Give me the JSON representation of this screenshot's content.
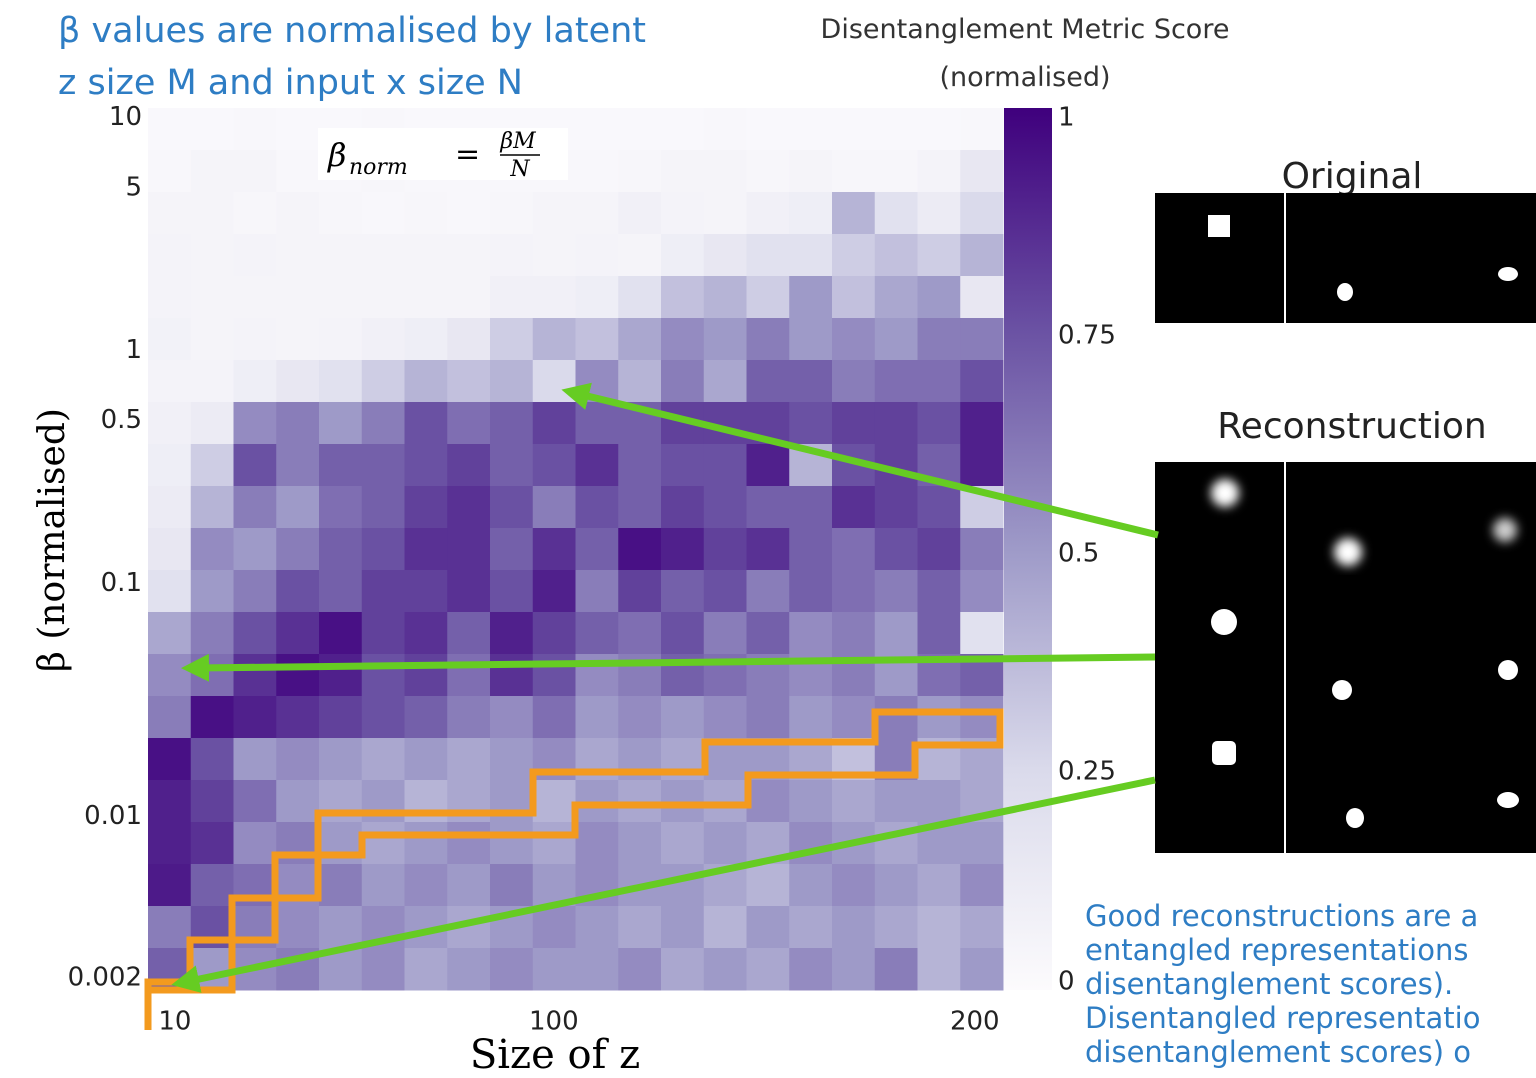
{
  "chart_data": {
    "type": "heatmap",
    "annotation_title": [
      "β values are normalised by latent",
      "z size M and input x size N"
    ],
    "formula": {
      "lhs": "β",
      "sub": "norm",
      "eq": "=",
      "num": "βM",
      "den": "N"
    },
    "colorbar_title": [
      "Disentanglement Metric Score",
      "(normalised)"
    ],
    "xlabel": "Size of z",
    "ylabel": "β (normalised)",
    "xlim": [
      3.6,
      206.7
    ],
    "xticks": [
      10,
      100,
      200
    ],
    "ylog": true,
    "ylim": [
      0.0018,
      11
    ],
    "yticks": [
      10,
      5,
      1,
      0.5,
      0.1,
      0.01,
      0.002
    ],
    "clim": [
      0,
      1
    ],
    "cticks": [
      1,
      0.75,
      0.5,
      0.25,
      0
    ],
    "colorscale": [
      "#fcfbfd",
      "#dadaeb",
      "#9e9ac8",
      "#6a51a3",
      "#3f007d"
    ],
    "z": [
      [
        0.02,
        0.02,
        0.03,
        0.02,
        0.02,
        0.03,
        0.02,
        0.02,
        0.02,
        0.02,
        0.02,
        0.02,
        0.02,
        0.03,
        0.02,
        0.02,
        0.02,
        0.02,
        0.02,
        0.03
      ],
      [
        0.03,
        0.05,
        0.05,
        0.03,
        0.03,
        0.04,
        0.03,
        0.03,
        0.03,
        0.03,
        0.03,
        0.04,
        0.05,
        0.05,
        0.04,
        0.05,
        0.04,
        0.04,
        0.06,
        0.15
      ],
      [
        0.05,
        0.05,
        0.04,
        0.05,
        0.04,
        0.03,
        0.04,
        0.03,
        0.04,
        0.05,
        0.05,
        0.08,
        0.06,
        0.05,
        0.08,
        0.1,
        0.4,
        0.2,
        0.12,
        0.25
      ],
      [
        0.06,
        0.05,
        0.06,
        0.05,
        0.05,
        0.05,
        0.05,
        0.05,
        0.06,
        0.05,
        0.06,
        0.05,
        0.1,
        0.15,
        0.2,
        0.2,
        0.3,
        0.35,
        0.3,
        0.4
      ],
      [
        0.06,
        0.05,
        0.05,
        0.05,
        0.05,
        0.05,
        0.05,
        0.05,
        0.08,
        0.08,
        0.1,
        0.2,
        0.35,
        0.4,
        0.3,
        0.5,
        0.35,
        0.45,
        0.5,
        0.15
      ],
      [
        0.07,
        0.05,
        0.06,
        0.05,
        0.06,
        0.08,
        0.1,
        0.15,
        0.3,
        0.4,
        0.35,
        0.45,
        0.55,
        0.5,
        0.6,
        0.5,
        0.55,
        0.5,
        0.6,
        0.6
      ],
      [
        0.06,
        0.06,
        0.1,
        0.15,
        0.2,
        0.3,
        0.4,
        0.35,
        0.4,
        0.25,
        0.55,
        0.4,
        0.6,
        0.45,
        0.7,
        0.7,
        0.6,
        0.65,
        0.65,
        0.75
      ],
      [
        0.08,
        0.12,
        0.55,
        0.6,
        0.5,
        0.6,
        0.75,
        0.65,
        0.7,
        0.8,
        0.7,
        0.7,
        0.8,
        0.8,
        0.8,
        0.75,
        0.8,
        0.8,
        0.75,
        0.9
      ],
      [
        0.1,
        0.3,
        0.75,
        0.6,
        0.7,
        0.7,
        0.75,
        0.8,
        0.7,
        0.75,
        0.85,
        0.7,
        0.75,
        0.75,
        0.9,
        0.4,
        0.75,
        0.8,
        0.7,
        0.9
      ],
      [
        0.12,
        0.4,
        0.6,
        0.5,
        0.65,
        0.7,
        0.8,
        0.85,
        0.75,
        0.6,
        0.75,
        0.7,
        0.8,
        0.75,
        0.7,
        0.7,
        0.85,
        0.8,
        0.75,
        0.3
      ],
      [
        0.15,
        0.55,
        0.5,
        0.6,
        0.7,
        0.75,
        0.85,
        0.85,
        0.7,
        0.85,
        0.7,
        0.95,
        0.9,
        0.8,
        0.85,
        0.7,
        0.65,
        0.75,
        0.8,
        0.6
      ],
      [
        0.2,
        0.5,
        0.6,
        0.75,
        0.7,
        0.8,
        0.8,
        0.85,
        0.75,
        0.9,
        0.6,
        0.8,
        0.7,
        0.75,
        0.6,
        0.7,
        0.65,
        0.6,
        0.7,
        0.55
      ],
      [
        0.45,
        0.6,
        0.75,
        0.85,
        0.95,
        0.8,
        0.85,
        0.7,
        0.9,
        0.8,
        0.7,
        0.65,
        0.75,
        0.6,
        0.7,
        0.55,
        0.6,
        0.5,
        0.7,
        0.2
      ],
      [
        0.55,
        0.65,
        0.85,
        0.95,
        0.9,
        0.75,
        0.8,
        0.65,
        0.85,
        0.75,
        0.55,
        0.6,
        0.7,
        0.65,
        0.6,
        0.55,
        0.6,
        0.5,
        0.65,
        0.7
      ],
      [
        0.6,
        0.95,
        0.9,
        0.85,
        0.8,
        0.75,
        0.7,
        0.6,
        0.55,
        0.65,
        0.5,
        0.55,
        0.5,
        0.55,
        0.6,
        0.5,
        0.55,
        0.6,
        0.5,
        0.55
      ],
      [
        0.95,
        0.75,
        0.5,
        0.55,
        0.5,
        0.45,
        0.5,
        0.45,
        0.5,
        0.55,
        0.45,
        0.5,
        0.45,
        0.5,
        0.5,
        0.45,
        0.35,
        0.6,
        0.4,
        0.45
      ],
      [
        0.9,
        0.8,
        0.65,
        0.5,
        0.45,
        0.5,
        0.4,
        0.45,
        0.5,
        0.4,
        0.5,
        0.45,
        0.5,
        0.45,
        0.55,
        0.5,
        0.45,
        0.5,
        0.5,
        0.45
      ],
      [
        0.9,
        0.85,
        0.55,
        0.6,
        0.5,
        0.45,
        0.5,
        0.55,
        0.5,
        0.45,
        0.55,
        0.5,
        0.45,
        0.5,
        0.45,
        0.55,
        0.5,
        0.45,
        0.5,
        0.5
      ],
      [
        0.92,
        0.7,
        0.65,
        0.55,
        0.6,
        0.5,
        0.55,
        0.5,
        0.6,
        0.5,
        0.55,
        0.5,
        0.5,
        0.45,
        0.4,
        0.5,
        0.55,
        0.5,
        0.45,
        0.55
      ],
      [
        0.6,
        0.75,
        0.6,
        0.55,
        0.5,
        0.55,
        0.5,
        0.45,
        0.5,
        0.55,
        0.5,
        0.45,
        0.5,
        0.4,
        0.5,
        0.45,
        0.5,
        0.45,
        0.4,
        0.45
      ],
      [
        0.7,
        0.5,
        0.55,
        0.6,
        0.5,
        0.55,
        0.45,
        0.5,
        0.55,
        0.5,
        0.5,
        0.55,
        0.45,
        0.5,
        0.45,
        0.55,
        0.5,
        0.6,
        0.4,
        0.5
      ]
    ],
    "panel_labels": [
      "Original",
      "Reconstruction"
    ],
    "caption_lines": [
      "Good reconstructions are a",
      "entangled representations",
      "disentanglement scores).",
      "Disentangled representatio",
      "disentanglement scores) o"
    ]
  }
}
